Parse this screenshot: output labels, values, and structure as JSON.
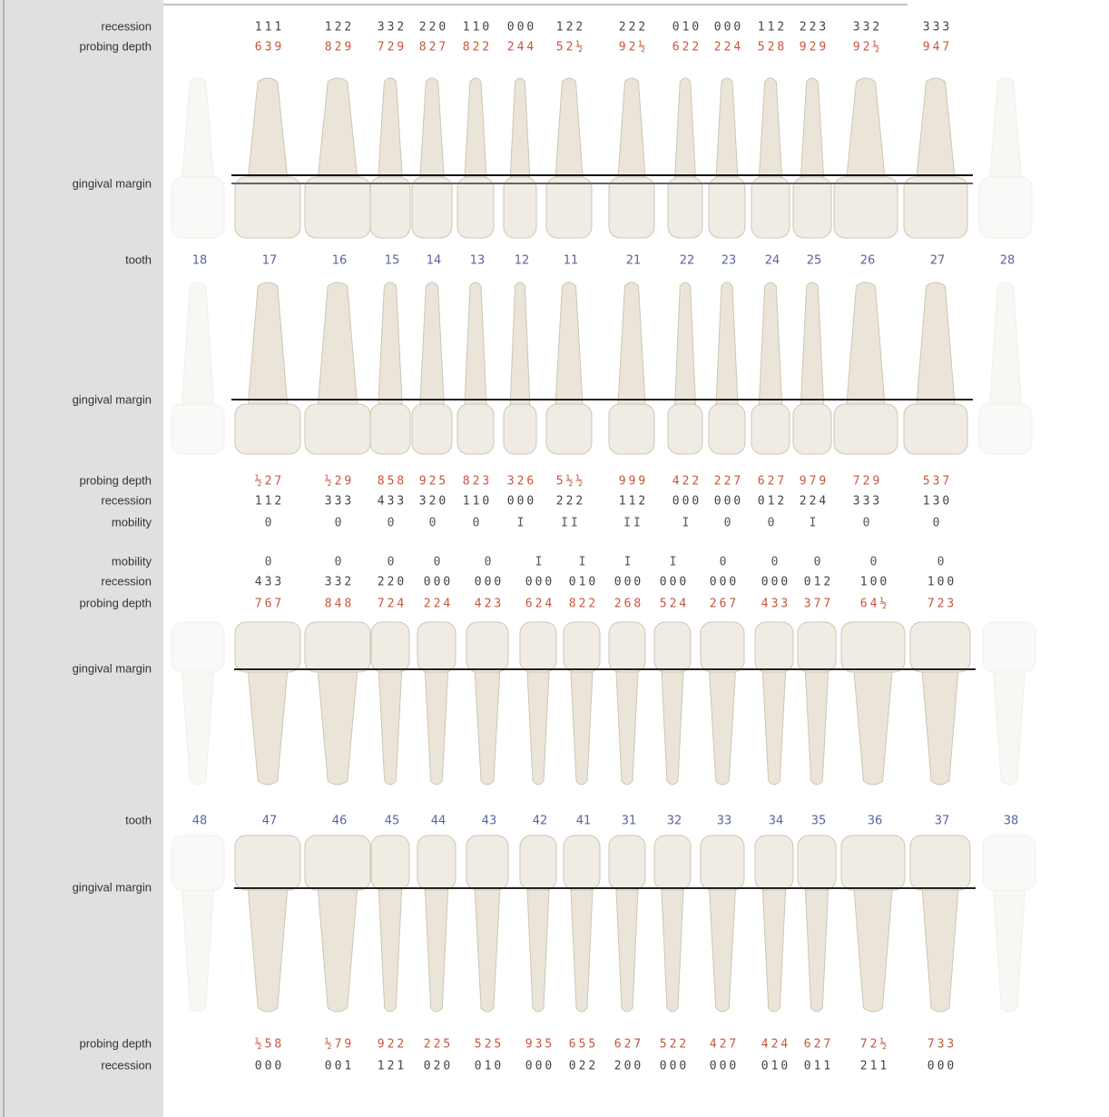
{
  "labels": {
    "recession": "recession",
    "probing_depth": "probing depth",
    "gingival_margin": "gingival margin",
    "tooth": "tooth",
    "mobility": "mobility"
  },
  "upper": [
    {
      "tooth": "18"
    },
    {
      "tooth": "17",
      "buccal_recession": "111",
      "buccal_probing": "639",
      "palatal_probing": "½27",
      "palatal_recession": "112",
      "mobility": "0"
    },
    {
      "tooth": "16",
      "buccal_recession": "122",
      "buccal_probing": "829",
      "palatal_probing": "½29",
      "palatal_recession": "333",
      "mobility": "0"
    },
    {
      "tooth": "15",
      "buccal_recession": "332",
      "buccal_probing": "729",
      "palatal_probing": "858",
      "palatal_recession": "433",
      "mobility": "0"
    },
    {
      "tooth": "14",
      "buccal_recession": "220",
      "buccal_probing": "827",
      "palatal_probing": "925",
      "palatal_recession": "320",
      "mobility": "0"
    },
    {
      "tooth": "13",
      "buccal_recession": "110",
      "buccal_probing": "822",
      "palatal_probing": "823",
      "palatal_recession": "110",
      "mobility": "0"
    },
    {
      "tooth": "12",
      "buccal_recession": "000",
      "buccal_probing": "244",
      "palatal_probing": "326",
      "palatal_recession": "000",
      "mobility": "I"
    },
    {
      "tooth": "11",
      "buccal_recession": "122",
      "buccal_probing": "52½",
      "palatal_probing": "5½½",
      "palatal_recession": "222",
      "mobility": "II"
    },
    {
      "tooth": "21",
      "buccal_recession": "222",
      "buccal_probing": "92½",
      "palatal_probing": "999",
      "palatal_recession": "112",
      "mobility": "II"
    },
    {
      "tooth": "22",
      "buccal_recession": "010",
      "buccal_probing": "622",
      "palatal_probing": "422",
      "palatal_recession": "000",
      "mobility": "I"
    },
    {
      "tooth": "23",
      "buccal_recession": "000",
      "buccal_probing": "224",
      "palatal_probing": "227",
      "palatal_recession": "000",
      "mobility": "0"
    },
    {
      "tooth": "24",
      "buccal_recession": "112",
      "buccal_probing": "528",
      "palatal_probing": "627",
      "palatal_recession": "012",
      "mobility": "0"
    },
    {
      "tooth": "25",
      "buccal_recession": "223",
      "buccal_probing": "929",
      "palatal_probing": "979",
      "palatal_recession": "224",
      "mobility": "I"
    },
    {
      "tooth": "26",
      "buccal_recession": "332",
      "buccal_probing": "92½",
      "palatal_probing": "729",
      "palatal_recession": "333",
      "mobility": "0"
    },
    {
      "tooth": "27",
      "buccal_recession": "333",
      "buccal_probing": "947",
      "palatal_probing": "537",
      "palatal_recession": "130",
      "mobility": "0"
    },
    {
      "tooth": "28"
    }
  ],
  "lower": [
    {
      "tooth": "48"
    },
    {
      "tooth": "47",
      "mobility": "0",
      "lingual_recession": "433",
      "lingual_probing": "767",
      "buccal_probing": "½58",
      "buccal_recession": "000"
    },
    {
      "tooth": "46",
      "mobility": "0",
      "lingual_recession": "332",
      "lingual_probing": "848",
      "buccal_probing": "½79",
      "buccal_recession": "001"
    },
    {
      "tooth": "45",
      "mobility": "0",
      "lingual_recession": "220",
      "lingual_probing": "724",
      "buccal_probing": "922",
      "buccal_recession": "121"
    },
    {
      "tooth": "44",
      "mobility": "0",
      "lingual_recession": "000",
      "lingual_probing": "224",
      "buccal_probing": "225",
      "buccal_recession": "020"
    },
    {
      "tooth": "43",
      "mobility": "0",
      "lingual_recession": "000",
      "lingual_probing": "423",
      "buccal_probing": "525",
      "buccal_recession": "010"
    },
    {
      "tooth": "42",
      "mobility": "I",
      "lingual_recession": "000",
      "lingual_probing": "624",
      "buccal_probing": "935",
      "buccal_recession": "000"
    },
    {
      "tooth": "41",
      "mobility": "I",
      "lingual_recession": "010",
      "lingual_probing": "822",
      "buccal_probing": "655",
      "buccal_recession": "022"
    },
    {
      "tooth": "31",
      "mobility": "I",
      "lingual_recession": "000",
      "lingual_probing": "268",
      "buccal_probing": "627",
      "buccal_recession": "200"
    },
    {
      "tooth": "32",
      "mobility": "I",
      "lingual_recession": "000",
      "lingual_probing": "524",
      "buccal_probing": "522",
      "buccal_recession": "000"
    },
    {
      "tooth": "33",
      "mobility": "0",
      "lingual_recession": "000",
      "lingual_probing": "267",
      "buccal_probing": "427",
      "buccal_recession": "000"
    },
    {
      "tooth": "34",
      "mobility": "0",
      "lingual_recession": "000",
      "lingual_probing": "433",
      "buccal_probing": "424",
      "buccal_recession": "010"
    },
    {
      "tooth": "35",
      "mobility": "0",
      "lingual_recession": "012",
      "lingual_probing": "377",
      "buccal_probing": "627",
      "buccal_recession": "011"
    },
    {
      "tooth": "36",
      "mobility": "0",
      "lingual_recession": "100",
      "lingual_probing": "64½",
      "buccal_probing": "72½",
      "buccal_recession": "211"
    },
    {
      "tooth": "37",
      "mobility": "0",
      "lingual_recession": "100",
      "lingual_probing": "723",
      "buccal_probing": "733",
      "buccal_recession": "000"
    },
    {
      "tooth": "38"
    }
  ]
}
